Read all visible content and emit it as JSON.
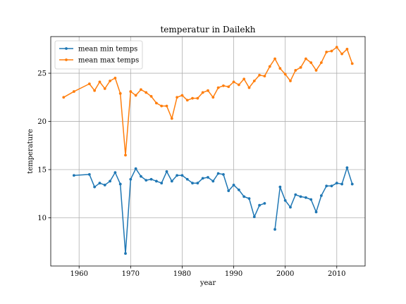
{
  "chart_data": {
    "type": "line",
    "title": "temperatur in Dailekh",
    "xlabel": "year",
    "ylabel": "temperature",
    "xlim": [
      1954.5,
      2015.5
    ],
    "ylim": [
      5.0,
      28.8
    ],
    "xticks": [
      1960,
      1970,
      1980,
      1990,
      2000,
      2010
    ],
    "yticks": [
      10,
      15,
      20,
      25
    ],
    "grid": true,
    "legend": "top-left",
    "series": [
      {
        "name": "mean min temps",
        "color": "#1f77b4",
        "points": [
          [
            1959,
            14.4
          ],
          [
            1962,
            14.5
          ],
          [
            1963,
            13.2
          ],
          [
            1964,
            13.6
          ],
          [
            1965,
            13.4
          ],
          [
            1966,
            13.8
          ],
          [
            1967,
            14.7
          ],
          [
            1968,
            13.5
          ],
          [
            1969,
            6.3
          ],
          [
            1970,
            14.0
          ],
          [
            1971,
            15.1
          ],
          [
            1972,
            14.3
          ],
          [
            1973,
            13.9
          ],
          [
            1974,
            14.0
          ],
          [
            1975,
            13.8
          ],
          [
            1976,
            13.6
          ],
          [
            1977,
            14.8
          ],
          [
            1978,
            13.8
          ],
          [
            1979,
            14.4
          ],
          [
            1980,
            14.4
          ],
          [
            1981,
            14.0
          ],
          [
            1982,
            13.6
          ],
          [
            1983,
            13.6
          ],
          [
            1984,
            14.1
          ],
          [
            1985,
            14.2
          ],
          [
            1986,
            13.8
          ],
          [
            1987,
            14.6
          ],
          [
            1988,
            14.5
          ],
          [
            1989,
            12.8
          ],
          [
            1990,
            13.4
          ],
          [
            1991,
            12.9
          ],
          [
            1992,
            12.2
          ],
          [
            1993,
            12.0
          ],
          [
            1994,
            10.1
          ],
          [
            1995,
            11.3
          ],
          [
            1996,
            11.5
          ],
          null,
          [
            1998,
            8.8
          ],
          [
            1999,
            13.2
          ],
          [
            2000,
            11.8
          ],
          [
            2001,
            11.1
          ],
          [
            2002,
            12.4
          ],
          [
            2003,
            12.2
          ],
          [
            2004,
            12.1
          ],
          [
            2005,
            11.9
          ],
          [
            2006,
            10.6
          ],
          [
            2007,
            12.3
          ],
          [
            2008,
            13.3
          ],
          [
            2009,
            13.3
          ],
          [
            2010,
            13.6
          ],
          [
            2011,
            13.5
          ],
          [
            2012,
            15.2
          ],
          [
            2013,
            13.5
          ]
        ]
      },
      {
        "name": "mean max temps",
        "color": "#ff7f0e",
        "points": [
          [
            1957,
            22.5
          ],
          [
            1959,
            23.1
          ],
          [
            1962,
            23.9
          ],
          [
            1963,
            23.2
          ],
          [
            1964,
            24.1
          ],
          [
            1965,
            23.4
          ],
          [
            1966,
            24.2
          ],
          [
            1967,
            24.5
          ],
          [
            1968,
            22.9
          ],
          [
            1969,
            16.5
          ],
          [
            1970,
            23.1
          ],
          [
            1971,
            22.7
          ],
          [
            1972,
            23.3
          ],
          [
            1973,
            23.0
          ],
          [
            1974,
            22.6
          ],
          [
            1975,
            21.9
          ],
          [
            1976,
            21.6
          ],
          [
            1977,
            21.6
          ],
          [
            1978,
            20.3
          ],
          [
            1979,
            22.5
          ],
          [
            1980,
            22.7
          ],
          [
            1981,
            22.2
          ],
          [
            1982,
            22.4
          ],
          [
            1983,
            22.4
          ],
          [
            1984,
            23.0
          ],
          [
            1985,
            23.2
          ],
          [
            1986,
            22.5
          ],
          [
            1987,
            23.5
          ],
          [
            1988,
            23.7
          ],
          [
            1989,
            23.6
          ],
          [
            1990,
            24.1
          ],
          [
            1991,
            23.8
          ],
          [
            1992,
            24.4
          ],
          [
            1993,
            23.5
          ],
          [
            1994,
            24.2
          ],
          [
            1995,
            24.8
          ],
          [
            1996,
            24.7
          ],
          [
            1997,
            25.7
          ],
          [
            1998,
            26.5
          ],
          [
            1999,
            25.5
          ],
          [
            2000,
            24.9
          ],
          [
            2001,
            24.2
          ],
          [
            2002,
            25.3
          ],
          [
            2003,
            25.6
          ],
          [
            2004,
            26.5
          ],
          [
            2005,
            26.1
          ],
          [
            2006,
            25.3
          ],
          [
            2007,
            26.1
          ],
          [
            2008,
            27.2
          ],
          [
            2009,
            27.3
          ],
          [
            2010,
            27.7
          ],
          [
            2011,
            27.0
          ],
          [
            2012,
            27.5
          ],
          [
            2013,
            26.0
          ]
        ]
      }
    ]
  }
}
